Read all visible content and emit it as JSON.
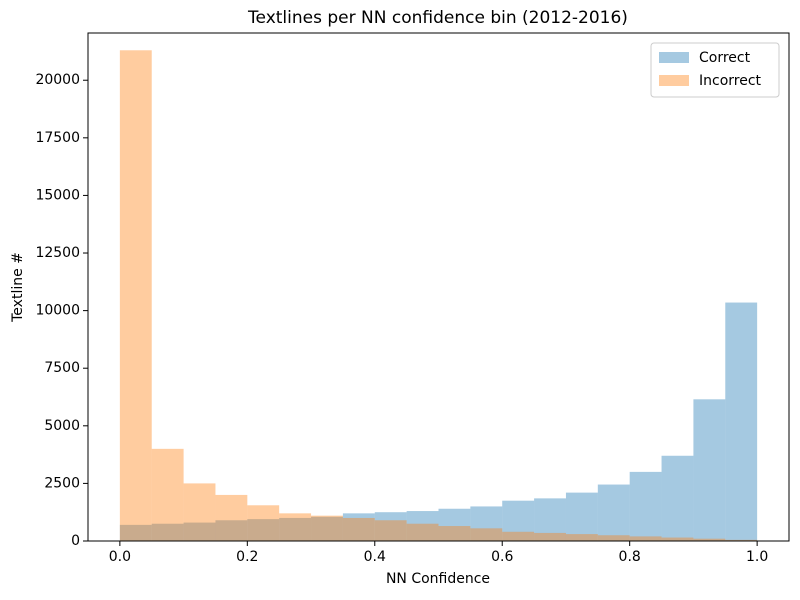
{
  "chart_data": {
    "type": "histogram",
    "title": "Textlines per NN confidence bin (2012-2016)",
    "x_label": "NN Confidence",
    "y_label": "Textline #",
    "bins": [
      0,
      0.05,
      0.1,
      0.15,
      0.2,
      0.25,
      0.3,
      0.35,
      0.4,
      0.45,
      0.5,
      0.55,
      0.6,
      0.65,
      0.7,
      0.75,
      0.8,
      0.85,
      0.9,
      0.95,
      1.0
    ],
    "series": [
      {
        "name": "Correct",
        "color": "#1f77b4",
        "values": [
          700,
          750,
          800,
          900,
          950,
          1000,
          1050,
          1200,
          1250,
          1300,
          1400,
          1500,
          1750,
          1850,
          2100,
          2450,
          3000,
          3700,
          6150,
          10350
        ]
      },
      {
        "name": "Incorrect",
        "color": "#ff7f0e",
        "values": [
          21300,
          4000,
          2500,
          2000,
          1550,
          1200,
          1100,
          1000,
          900,
          750,
          650,
          550,
          400,
          350,
          300,
          250,
          200,
          150,
          100,
          50
        ]
      }
    ],
    "opacity": 0.4,
    "xlim": [
      -0.05,
      1.05
    ],
    "ylim": [
      0,
      22050
    ],
    "xticks": [
      {
        "value": 0,
        "label": "0.0"
      },
      {
        "value": 0.2,
        "label": "0.2"
      },
      {
        "value": 0.4,
        "label": "0.4"
      },
      {
        "value": 0.6,
        "label": "0.6"
      },
      {
        "value": 0.8,
        "label": "0.8"
      },
      {
        "value": 1.0,
        "label": "1.0"
      }
    ],
    "yticks": [
      0,
      2500,
      5000,
      7500,
      10000,
      12500,
      15000,
      17500,
      20000
    ],
    "legend": "upper right",
    "grid": false
  }
}
